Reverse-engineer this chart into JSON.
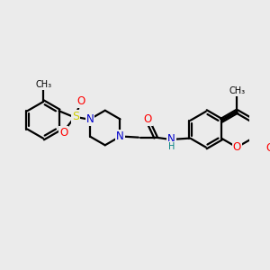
{
  "bg_color": "#ebebeb",
  "bond_color": "#000000",
  "bond_width": 1.6,
  "atom_colors": {
    "N": "#0000cc",
    "O": "#ff0000",
    "S": "#cccc00",
    "H": "#008080",
    "C": "#000000"
  },
  "font_size": 8.5
}
